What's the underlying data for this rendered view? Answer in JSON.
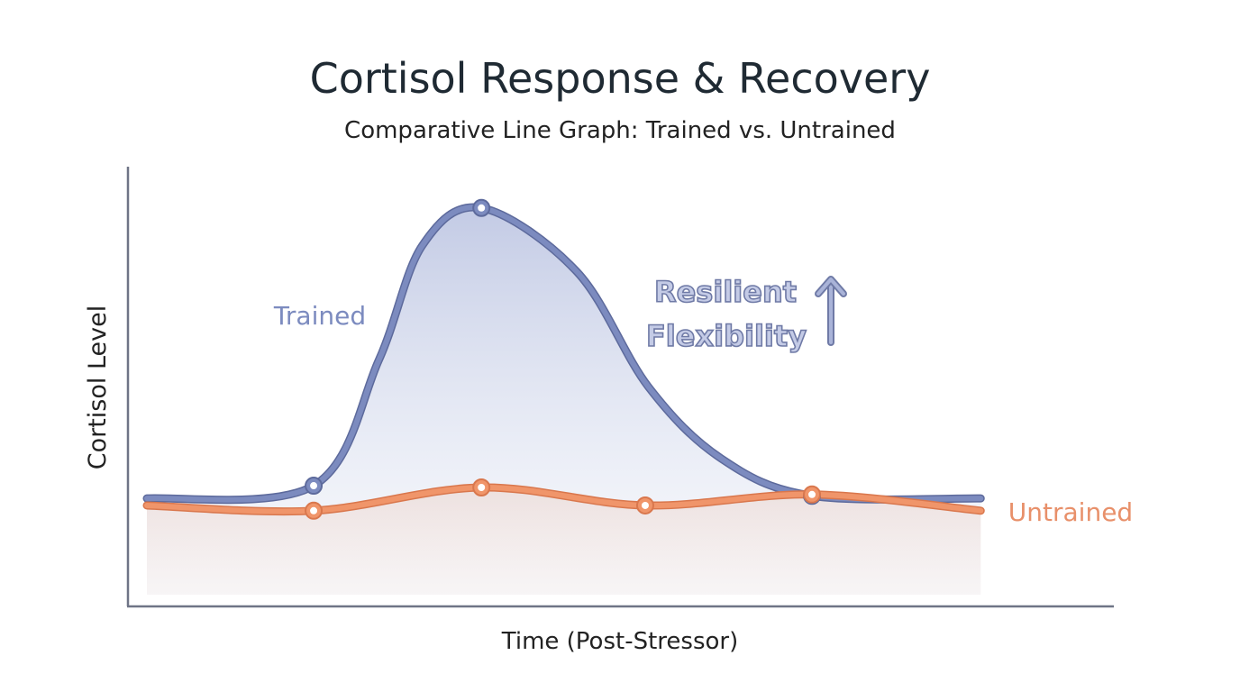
{
  "chart_data": {
    "type": "line",
    "title": "Cortisol Response & Recovery",
    "subtitle": "Comparative Line Graph: Trained vs. Untrained",
    "xlabel": "Time (Post-Stressor)",
    "ylabel": "Cortisol Level",
    "xlim": [
      0,
      100
    ],
    "ylim": [
      0,
      100
    ],
    "grid": false,
    "series": [
      {
        "name": "Trained",
        "color": "#7c8bbf",
        "x": [
          2.1,
          19,
          25.6,
          30,
          36,
          45.7,
          52.9,
          60.3,
          69.5,
          86.6
        ],
        "y": [
          24.4,
          27.3,
          55.9,
          82,
          90.6,
          76,
          49.9,
          33.5,
          25,
          24.4
        ],
        "markers": [
          false,
          true,
          false,
          false,
          true,
          false,
          false,
          false,
          true,
          false
        ]
      },
      {
        "name": "Untrained",
        "color": "#f0956a",
        "x": [
          2.1,
          19,
          36,
          52.6,
          69.5,
          86.6
        ],
        "y": [
          22.8,
          21.6,
          26.9,
          22.8,
          25.3,
          21.6
        ],
        "markers": [
          false,
          true,
          true,
          true,
          true,
          false
        ]
      }
    ],
    "annotations": [
      {
        "text_line1": "Resilient",
        "text_line2": "Flexibility",
        "icon": "arrow-up-icon"
      }
    ]
  }
}
